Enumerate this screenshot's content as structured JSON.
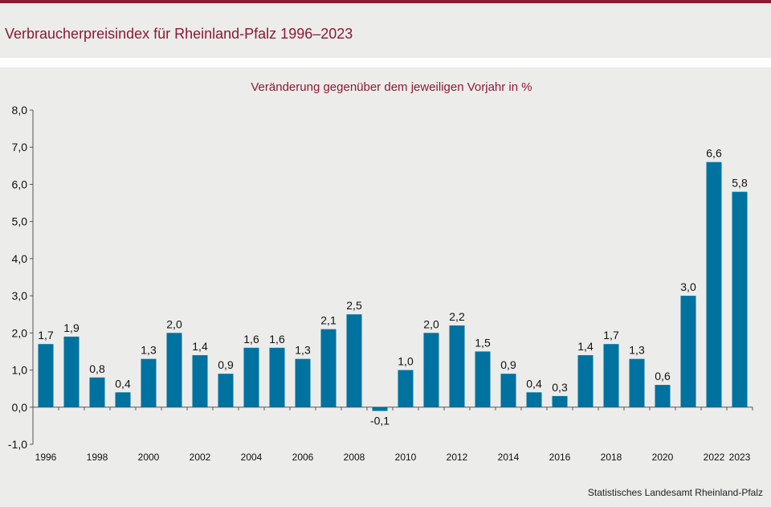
{
  "title": "Verbraucherpreisindex für Rheinland-Pfalz 1996–2023",
  "source": "Statistisches Landesamt Rheinland-Pfalz",
  "colors": {
    "bar": "#00729f",
    "accent": "#8c1a32",
    "background": "#ececeb",
    "axis": "#555555"
  },
  "chart_data": {
    "type": "bar",
    "subtitle": "Veränderung gegenüber dem jeweiligen Vorjahr in %",
    "categories": [
      "1996",
      "1997",
      "1998",
      "1999",
      "2000",
      "2001",
      "2002",
      "2003",
      "2004",
      "2005",
      "2006",
      "2007",
      "2008",
      "2009",
      "2010",
      "2011",
      "2012",
      "2013",
      "2014",
      "2015",
      "2016",
      "2017",
      "2018",
      "2019",
      "2020",
      "2021",
      "2022",
      "2023"
    ],
    "x_tick_labels": [
      "1996",
      "",
      "1998",
      "",
      "2000",
      "",
      "2002",
      "",
      "2004",
      "",
      "2006",
      "",
      "2008",
      "",
      "2010",
      "",
      "2012",
      "",
      "2014",
      "",
      "2016",
      "",
      "2018",
      "",
      "2020",
      "",
      "2022",
      "2023"
    ],
    "values": [
      1.7,
      1.9,
      0.8,
      0.4,
      1.3,
      2.0,
      1.4,
      0.9,
      1.6,
      1.6,
      1.3,
      2.1,
      2.5,
      -0.1,
      1.0,
      2.0,
      2.2,
      1.5,
      0.9,
      0.4,
      0.3,
      1.4,
      1.7,
      1.3,
      0.6,
      3.0,
      6.6,
      5.8
    ],
    "value_labels": [
      "1,7",
      "1,9",
      "0,8",
      "0,4",
      "1,3",
      "2,0",
      "1,4",
      "0,9",
      "1,6",
      "1,6",
      "1,3",
      "2,1",
      "2,5",
      "-0,1",
      "1,0",
      "2,0",
      "2,2",
      "1,5",
      "0,9",
      "0,4",
      "0,3",
      "1,4",
      "1,7",
      "1,3",
      "0,6",
      "3,0",
      "6,6",
      "5,8"
    ],
    "y_ticks": [
      "-1,0",
      "0,0",
      "1,0",
      "2,0",
      "3,0",
      "4,0",
      "5,0",
      "6,0",
      "7,0",
      "8,0"
    ],
    "ylim": [
      -1,
      8
    ],
    "grid": false,
    "legend": "none"
  }
}
